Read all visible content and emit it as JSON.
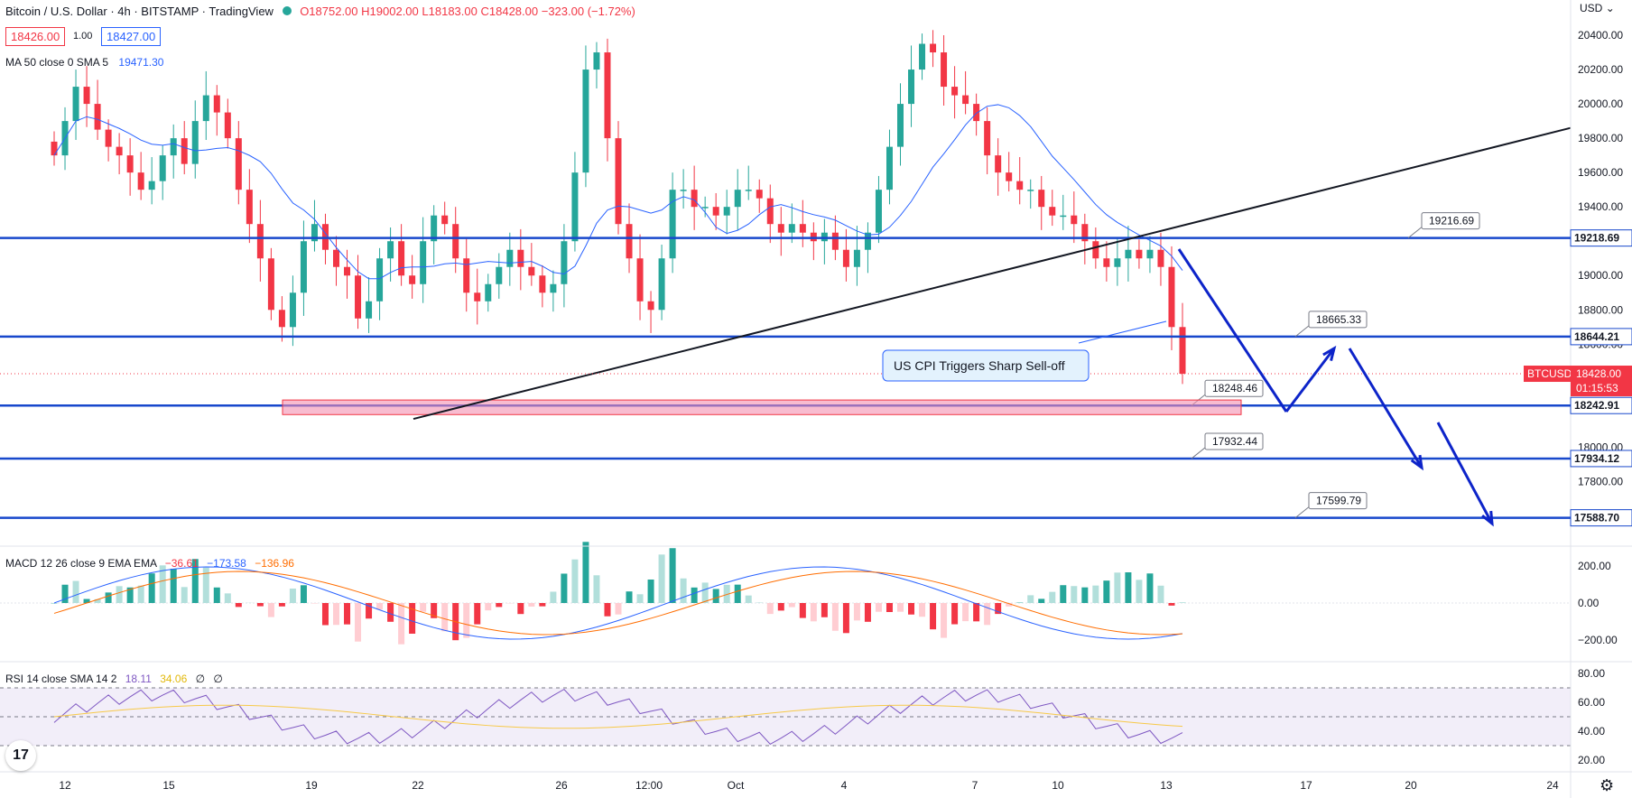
{
  "header": {
    "title": "Bitcoin / U.S. Dollar · 4h · BITSTAMP · TradingView",
    "ohlc": {
      "o": "O18752.00",
      "h": "H19002.00",
      "l": "L18183.00",
      "c": "C18428.00",
      "chg": "−323.00 (−1.72%)"
    },
    "bid": "18426.00",
    "spread": "1.00",
    "ask": "18427.00",
    "ma_label": "MA 50 close 0 SMA 5",
    "ma_value": "19471.30",
    "currency": "USD"
  },
  "price_axis": {
    "ticks": [
      "20400.00",
      "20200.00",
      "20000.00",
      "19800.00",
      "19600.00",
      "19400.00",
      "19000.00",
      "18800.00",
      "18600.00",
      "18000.00",
      "17800.00"
    ]
  },
  "levels": [
    {
      "label": "19218.69",
      "callout": "19216.69"
    },
    {
      "label": "18644.21",
      "callout": "18665.33"
    },
    {
      "label": "18242.91",
      "callout": "18248.46"
    },
    {
      "label": "17934.12",
      "callout": "17932.44"
    },
    {
      "label": "17588.70",
      "callout": "17599.79"
    }
  ],
  "last_price": {
    "symbol": "BTCUSD",
    "price": "18428.00",
    "countdown": "01:15:53"
  },
  "annotation": "US CPI Triggers Sharp Sell-off",
  "macd": {
    "label": "MACD 12 26 close 9 EMA EMA",
    "v1": "−36.61",
    "v2": "−173.58",
    "v3": "−136.96",
    "ticks": [
      "200.00",
      "0.00",
      "−200.00"
    ]
  },
  "rsi": {
    "label": "RSI 14 close SMA 14 2",
    "v1": "18.11",
    "v2": "34.06",
    "v3": "∅",
    "v4": "∅",
    "ticks": [
      "80.00",
      "60.00",
      "40.00",
      "20.00"
    ]
  },
  "time_axis": [
    "12",
    "15",
    "19",
    "22",
    "26",
    "12:00",
    "Oct",
    "4",
    "7",
    "10",
    "13",
    "17",
    "20",
    "24"
  ],
  "colors": {
    "up": "#26a69a",
    "down": "#f23645",
    "level": "#1848cc",
    "ma": "#2962ff"
  },
  "icons": {
    "logo": "tradingview-logo-icon",
    "settings": "gear-icon"
  },
  "chart_data": {
    "type": "candlestick",
    "candles_close": [
      19700,
      19900,
      20100,
      20000,
      19850,
      19750,
      19700,
      19600,
      19500,
      19550,
      19700,
      19800,
      19650,
      19900,
      20050,
      19950,
      19800,
      19500,
      19300,
      19100,
      18800,
      18700,
      18900,
      19200,
      19300,
      19150,
      19050,
      19000,
      18750,
      18850,
      19100,
      19200,
      19000,
      18950,
      19200,
      19350,
      19300,
      19100,
      18900,
      18850,
      18950,
      19050,
      19150,
      19050,
      19000,
      18900,
      18950,
      19200,
      19600,
      20200,
      20300,
      19800,
      19300,
      19100,
      18850,
      18800,
      19100,
      19500,
      19500,
      19400,
      19400,
      19350,
      19400,
      19500,
      19500,
      19450,
      19300,
      19250,
      19300,
      19250,
      19200,
      19250,
      19150,
      19050,
      19150,
      19250,
      19500,
      19750,
      20000,
      20200,
      20350,
      20300,
      20100,
      20050,
      20000,
      19900,
      19700,
      19600,
      19550,
      19500,
      19500,
      19400,
      19350,
      19350,
      19300,
      19200,
      19100,
      19050,
      19100,
      19150,
      19100,
      19150,
      19050,
      18700,
      18428
    ],
    "ylim": [
      17450,
      20500
    ]
  }
}
